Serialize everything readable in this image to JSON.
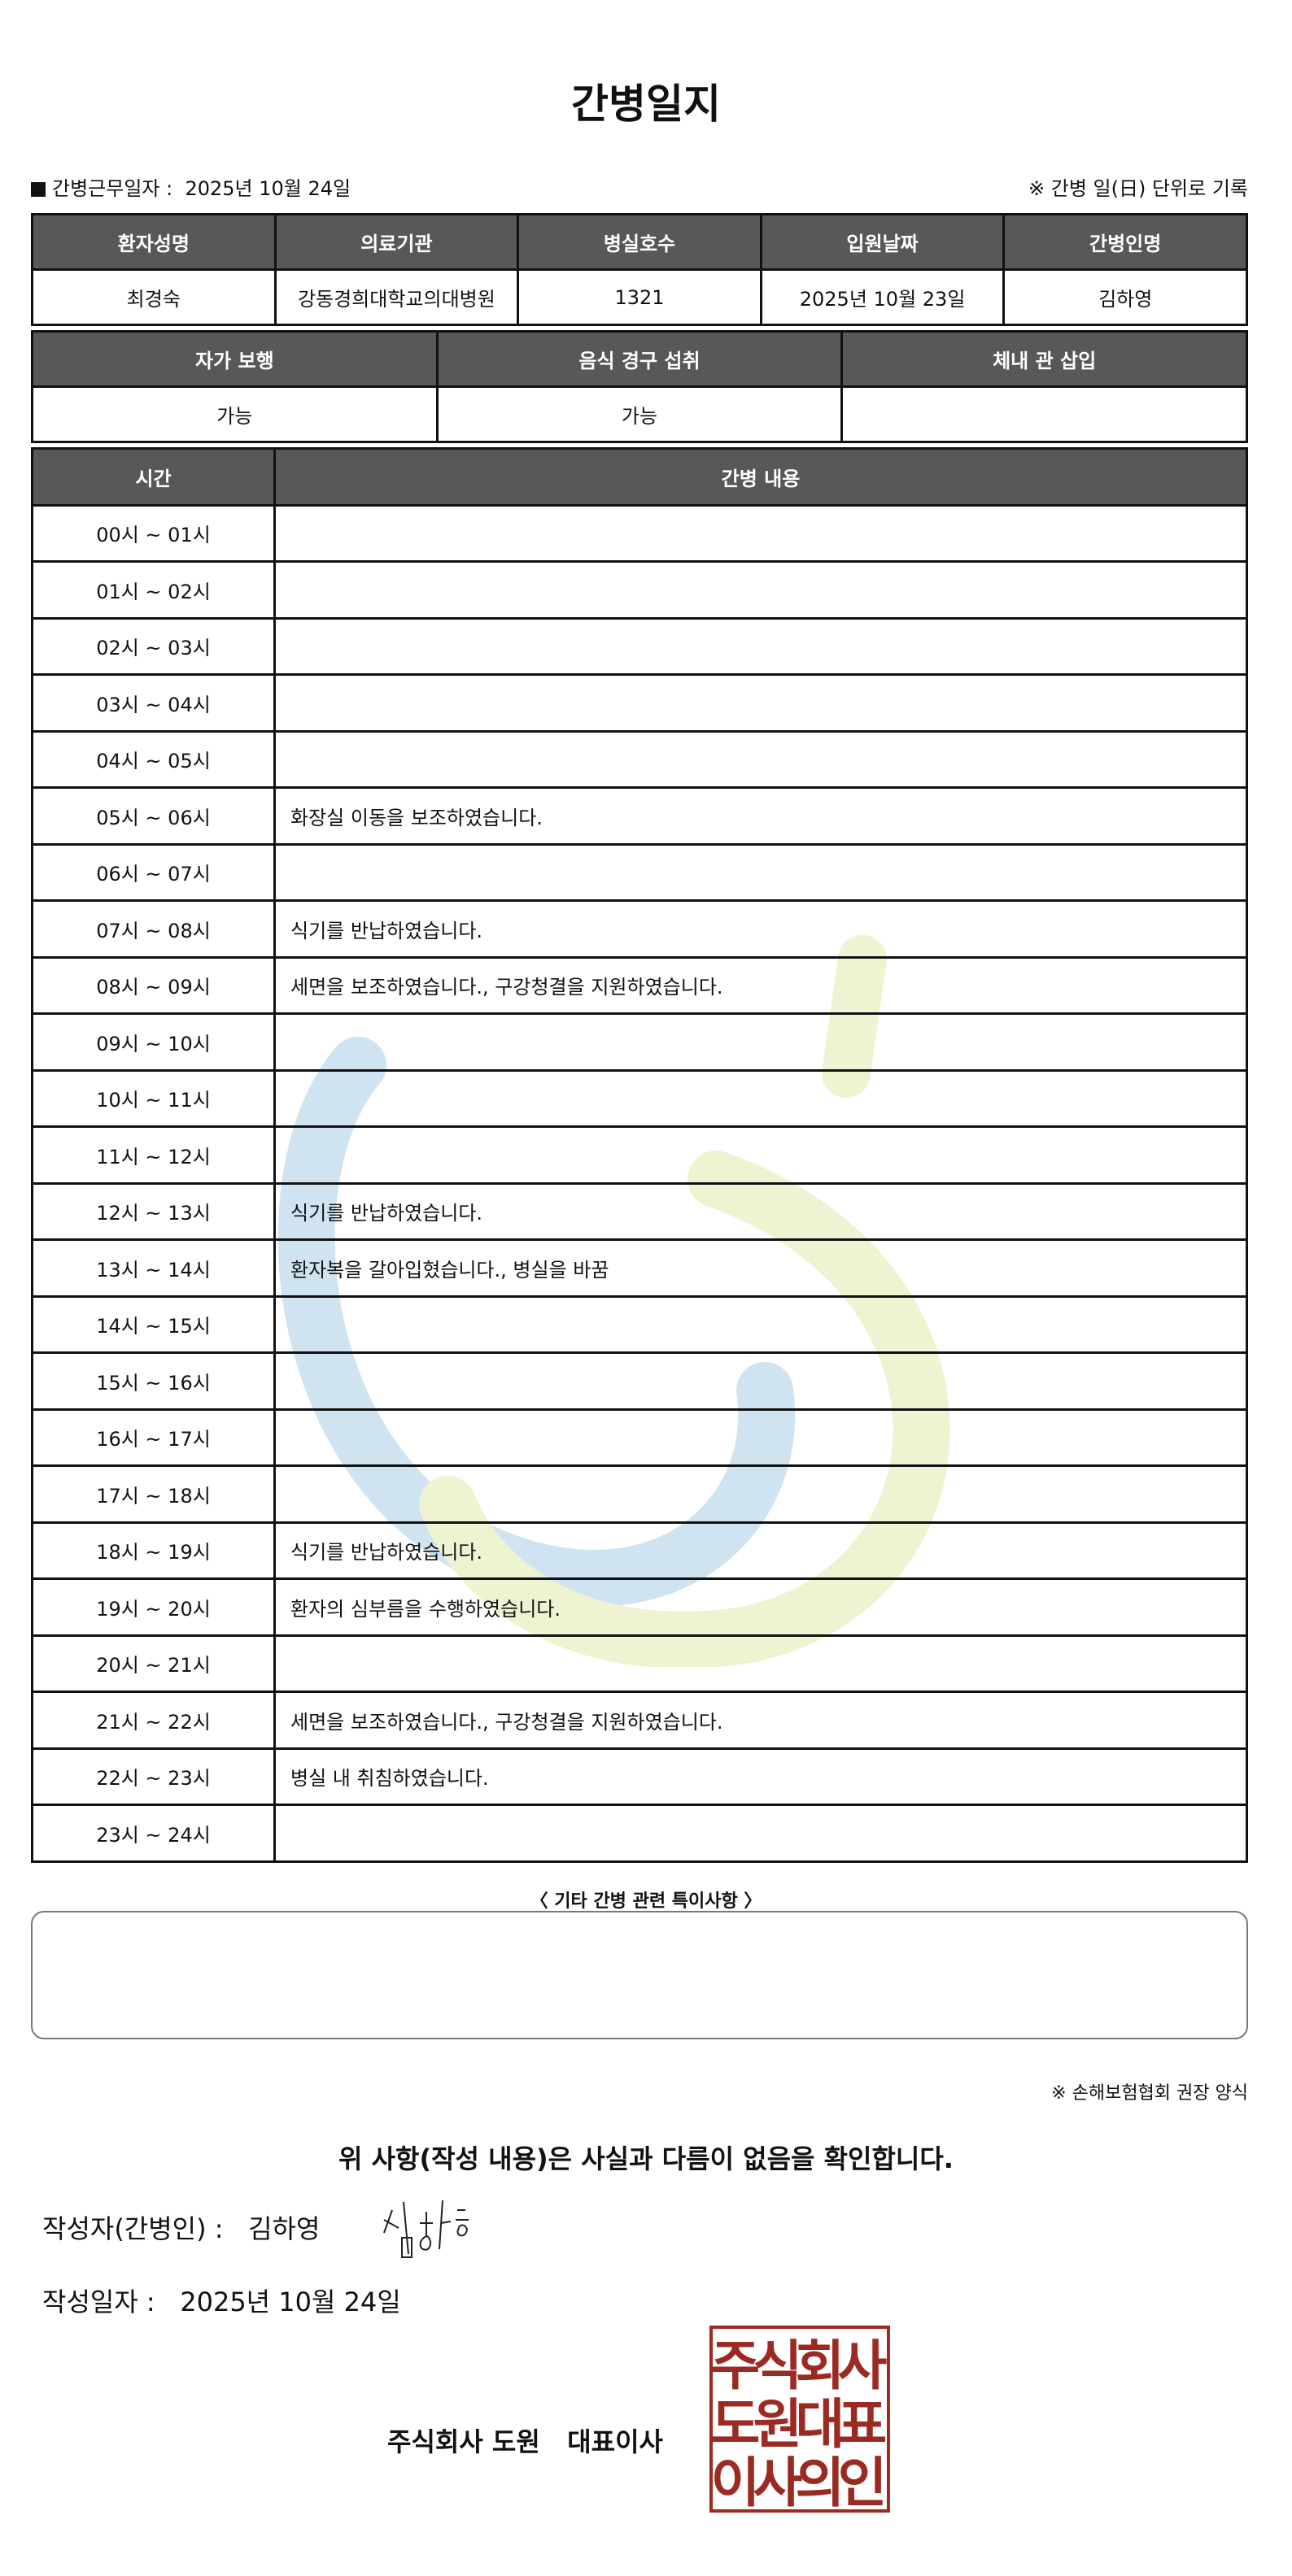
{
  "title": "간병일지",
  "work_date_label": "간병근무일자",
  "work_date": "2025년 10월 24일",
  "unit_note": "※ 간병 일(日) 단위로 기록",
  "info": {
    "headers": [
      "환자성명",
      "의료기관",
      "병실호수",
      "입원날짜",
      "간병인명"
    ],
    "values": [
      "최경숙",
      "강동경희대학교의대병원",
      "1321",
      "2025년 10월 23일",
      "김하영"
    ]
  },
  "status": {
    "headers": [
      "자가 보행",
      "음식 경구 섭취",
      "체내 관 삽입"
    ],
    "values": [
      "가능",
      "가능",
      ""
    ]
  },
  "log": {
    "headers": [
      "시간",
      "간병 내용"
    ],
    "rows": [
      {
        "time": "00시 ~ 01시",
        "content": ""
      },
      {
        "time": "01시 ~ 02시",
        "content": ""
      },
      {
        "time": "02시 ~ 03시",
        "content": ""
      },
      {
        "time": "03시 ~ 04시",
        "content": ""
      },
      {
        "time": "04시 ~ 05시",
        "content": ""
      },
      {
        "time": "05시 ~ 06시",
        "content": "화장실 이동을 보조하였습니다."
      },
      {
        "time": "06시 ~ 07시",
        "content": ""
      },
      {
        "time": "07시 ~ 08시",
        "content": "식기를 반납하였습니다."
      },
      {
        "time": "08시 ~ 09시",
        "content": "세면을 보조하였습니다., 구강청결을 지원하였습니다."
      },
      {
        "time": "09시 ~ 10시",
        "content": ""
      },
      {
        "time": "10시 ~ 11시",
        "content": ""
      },
      {
        "time": "11시 ~ 12시",
        "content": ""
      },
      {
        "time": "12시 ~ 13시",
        "content": "식기를 반납하였습니다."
      },
      {
        "time": "13시 ~ 14시",
        "content": "환자복을 갈아입혔습니다., 병실을 바꿈"
      },
      {
        "time": "14시 ~ 15시",
        "content": ""
      },
      {
        "time": "15시 ~ 16시",
        "content": ""
      },
      {
        "time": "16시 ~ 17시",
        "content": ""
      },
      {
        "time": "17시 ~ 18시",
        "content": ""
      },
      {
        "time": "18시 ~ 19시",
        "content": "식기를 반납하였습니다."
      },
      {
        "time": "19시 ~ 20시",
        "content": "환자의 심부름을 수행하였습니다."
      },
      {
        "time": "20시 ~ 21시",
        "content": ""
      },
      {
        "time": "21시 ~ 22시",
        "content": "세면을 보조하였습니다., 구강청결을 지원하였습니다."
      },
      {
        "time": "22시 ~ 23시",
        "content": "병실 내 취침하였습니다."
      },
      {
        "time": "23시 ~ 24시",
        "content": ""
      }
    ]
  },
  "notes_title": "〈 기타 간병 관련 특이사항 〉",
  "notes": "",
  "recommend_note": "※ 손해보험협회 권장 양식",
  "confirm_text": "위 사항(작성 내용)은 사실과 다름이 없음을 확인합니다.",
  "writer_label": "작성자(간병인) :",
  "writer_name": "김하영",
  "signature": "김하영",
  "written_date_label": "작성일자 :",
  "written_date": "2025년 10월 24일",
  "company": "주식회사 도원   대표이사",
  "stamp_text": "주식회사도원대표이사의인",
  "colors": {
    "header_bg": "#585858",
    "stamp": "#9b2a22",
    "watermark_blue": "#cfe3f1",
    "watermark_green": "#eef3d2"
  }
}
